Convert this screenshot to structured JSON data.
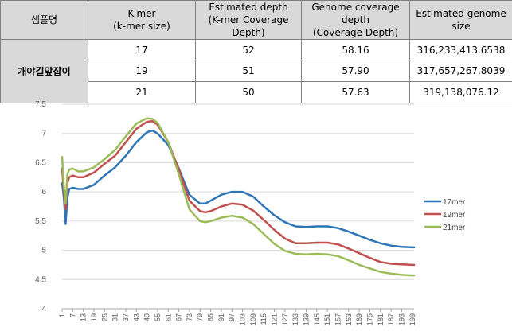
{
  "table": {
    "headers": [
      "샘플명",
      "K-mer\n(k-mer size)",
      "Estimated depth\n(K-mer Coverage Depth)",
      "Genome coverage depth\n(Coverage Depth)",
      "Estimated genome\nsize"
    ],
    "sample_name": "개야길앞잡이",
    "rows": [
      [
        "17",
        "52",
        "58.16",
        "316,233,413.6538"
      ],
      [
        "19",
        "51",
        "57.90",
        "317,657,267.8039"
      ],
      [
        "21",
        "50",
        "57.63",
        "319,138,076.12"
      ]
    ]
  },
  "chart_data": {
    "type": "line",
    "title": "",
    "xlabel": "",
    "ylabel": "",
    "xlim": [
      1,
      200
    ],
    "ylim": [
      4,
      7.5
    ],
    "y_ticks": [
      "7.5",
      "7",
      "6.5",
      "6",
      "5.5",
      "5",
      "4.5",
      "4"
    ],
    "x_ticks": [
      "1",
      "7",
      "13",
      "19",
      "25",
      "31",
      "37",
      "43",
      "49",
      "55",
      "61",
      "67",
      "73",
      "79",
      "85",
      "91",
      "97",
      "103",
      "109",
      "115",
      "121",
      "127",
      "133",
      "139",
      "145",
      "151",
      "157",
      "163",
      "169",
      "175",
      "181",
      "187",
      "193",
      "199"
    ],
    "grid": "horizontal",
    "legend_position": "right",
    "x": [
      1,
      2,
      3,
      4,
      5,
      7,
      10,
      13,
      19,
      25,
      31,
      37,
      43,
      49,
      52,
      55,
      61,
      67,
      73,
      79,
      82,
      85,
      91,
      97,
      103,
      109,
      115,
      121,
      127,
      133,
      139,
      145,
      151,
      157,
      163,
      169,
      175,
      181,
      187,
      193,
      199,
      200
    ],
    "series": [
      {
        "name": "17mer",
        "color": "#2e75b6",
        "values": [
          6.15,
          5.9,
          5.45,
          5.9,
          6.05,
          6.07,
          6.05,
          6.05,
          6.12,
          6.28,
          6.42,
          6.62,
          6.85,
          7.02,
          7.05,
          7.0,
          6.8,
          6.4,
          5.95,
          5.8,
          5.8,
          5.85,
          5.95,
          6.0,
          6.0,
          5.92,
          5.75,
          5.6,
          5.48,
          5.41,
          5.4,
          5.41,
          5.41,
          5.38,
          5.32,
          5.25,
          5.18,
          5.12,
          5.08,
          5.06,
          5.05,
          5.05
        ]
      },
      {
        "name": "19mer",
        "color": "#c0504d",
        "values": [
          6.4,
          6.0,
          5.7,
          6.15,
          6.25,
          6.28,
          6.25,
          6.25,
          6.33,
          6.48,
          6.62,
          6.85,
          7.08,
          7.2,
          7.21,
          7.15,
          6.85,
          6.38,
          5.85,
          5.67,
          5.65,
          5.67,
          5.75,
          5.8,
          5.78,
          5.68,
          5.52,
          5.35,
          5.2,
          5.12,
          5.12,
          5.13,
          5.13,
          5.1,
          5.03,
          4.95,
          4.87,
          4.8,
          4.77,
          4.76,
          4.75,
          4.75
        ]
      },
      {
        "name": "21mer",
        "color": "#9bbb59",
        "values": [
          6.6,
          6.1,
          5.8,
          6.3,
          6.38,
          6.4,
          6.35,
          6.35,
          6.42,
          6.56,
          6.72,
          6.95,
          7.17,
          7.26,
          7.25,
          7.18,
          6.85,
          6.3,
          5.7,
          5.5,
          5.48,
          5.5,
          5.56,
          5.59,
          5.56,
          5.45,
          5.28,
          5.11,
          4.99,
          4.94,
          4.93,
          4.94,
          4.93,
          4.9,
          4.83,
          4.75,
          4.69,
          4.63,
          4.6,
          4.58,
          4.57,
          4.57
        ]
      }
    ]
  }
}
